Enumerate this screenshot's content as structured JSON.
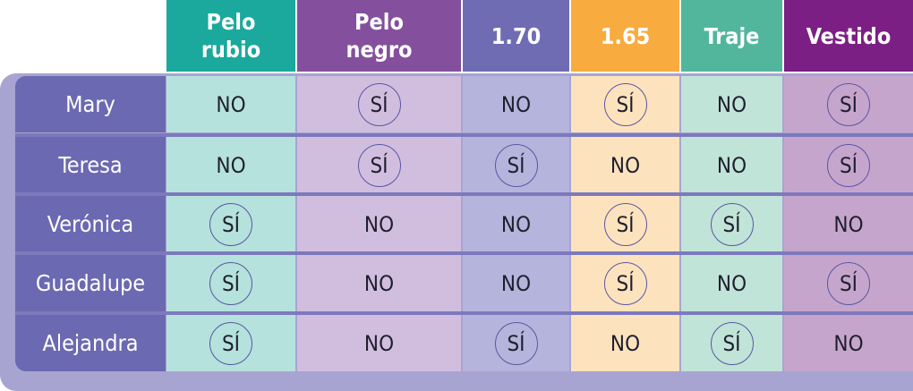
{
  "colors": {
    "frame": "#a8a4d2",
    "name_column": "#6b69b1",
    "row_divider": "#7d79bd",
    "circle_stroke": "#5a56a4"
  },
  "columns": [
    {
      "label": "Pelo\nrubio",
      "header_color": "#1aa99c",
      "cell_color": "#b5e2dc"
    },
    {
      "label": "Pelo\nnegro",
      "header_color": "#84509d",
      "cell_color": "#d1bedf"
    },
    {
      "label": "1.70",
      "header_color": "#6f6cb4",
      "cell_color": "#b5b4dc"
    },
    {
      "label": "1.65",
      "header_color": "#f8ab3f",
      "cell_color": "#fde3bd"
    },
    {
      "label": "Traje",
      "header_color": "#52b69c",
      "cell_color": "#c1e4d8"
    },
    {
      "label": "Vestido",
      "header_color": "#7c1f84",
      "cell_color": "#c6a5cd"
    }
  ],
  "rows": [
    {
      "name": "Mary",
      "values": [
        "NO",
        "SÍ",
        "NO",
        "SÍ",
        "NO",
        "SÍ"
      ]
    },
    {
      "name": "Teresa",
      "values": [
        "NO",
        "SÍ",
        "SÍ",
        "NO",
        "NO",
        "SÍ"
      ]
    },
    {
      "name": "Verónica",
      "values": [
        "SÍ",
        "NO",
        "NO",
        "SÍ",
        "SÍ",
        "NO"
      ]
    },
    {
      "name": "Guadalupe",
      "values": [
        "SÍ",
        "NO",
        "NO",
        "SÍ",
        "NO",
        "SÍ"
      ]
    },
    {
      "name": "Alejandra",
      "values": [
        "SÍ",
        "NO",
        "SÍ",
        "NO",
        "SÍ",
        "NO"
      ]
    }
  ]
}
